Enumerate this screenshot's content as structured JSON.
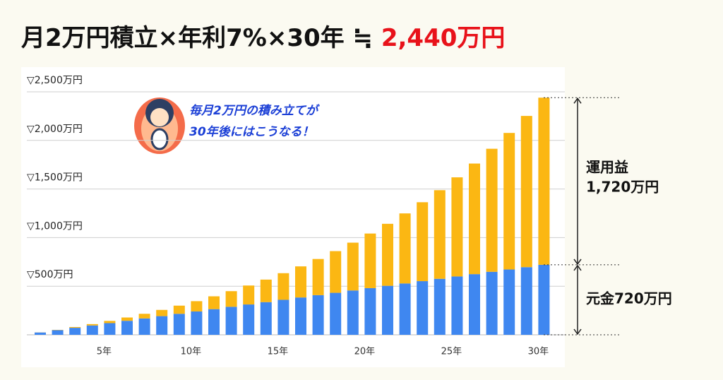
{
  "title": "月2万円積立×年利7%×30年 ≒ ",
  "title_highlight": "2,440万円",
  "chart_data": {
    "type": "stacked_bar",
    "categories": [
      null,
      null,
      null,
      null,
      "5年",
      null,
      null,
      null,
      null,
      "10年",
      null,
      null,
      null,
      null,
      "15年",
      null,
      null,
      null,
      null,
      "20年",
      null,
      null,
      null,
      null,
      "25年",
      null,
      null,
      null,
      null,
      "30年"
    ],
    "series": [
      {
        "color": "#3f87f0",
        "values": [
          24,
          48,
          72,
          96,
          120,
          144,
          168,
          192,
          216,
          240,
          264,
          288,
          312,
          336,
          360,
          384,
          408,
          432,
          456,
          480,
          504,
          528,
          552,
          576,
          600,
          624,
          648,
          672,
          696,
          720
        ]
      },
      {
        "color": "#fbb713",
        "values": [
          1,
          3,
          8,
          14,
          23,
          34,
          48,
          64,
          84,
          106,
          132,
          161,
          195,
          232,
          274,
          320,
          372,
          429,
          492,
          562,
          638,
          721,
          812,
          912,
          1020,
          1138,
          1266,
          1405,
          1556,
          1720
        ]
      }
    ],
    "ylim": [
      0,
      2500
    ],
    "yticks": [
      {
        "value": 500,
        "label": "▽500万円"
      },
      {
        "value": 1000,
        "label": "▽1,000万円"
      },
      {
        "value": 1500,
        "label": "▽1,500万円"
      },
      {
        "value": 2000,
        "label": "▽2,000万円"
      },
      {
        "value": 2500,
        "label": "▽2,500万円"
      }
    ],
    "grid": true,
    "annotations": {
      "bubble": [
        "毎月2万円の積み立てが",
        "30年後にはこうなる！"
      ],
      "gain_label": "運用益",
      "gain_value": "1,720万円",
      "principal_label": "元金720万円"
    }
  }
}
